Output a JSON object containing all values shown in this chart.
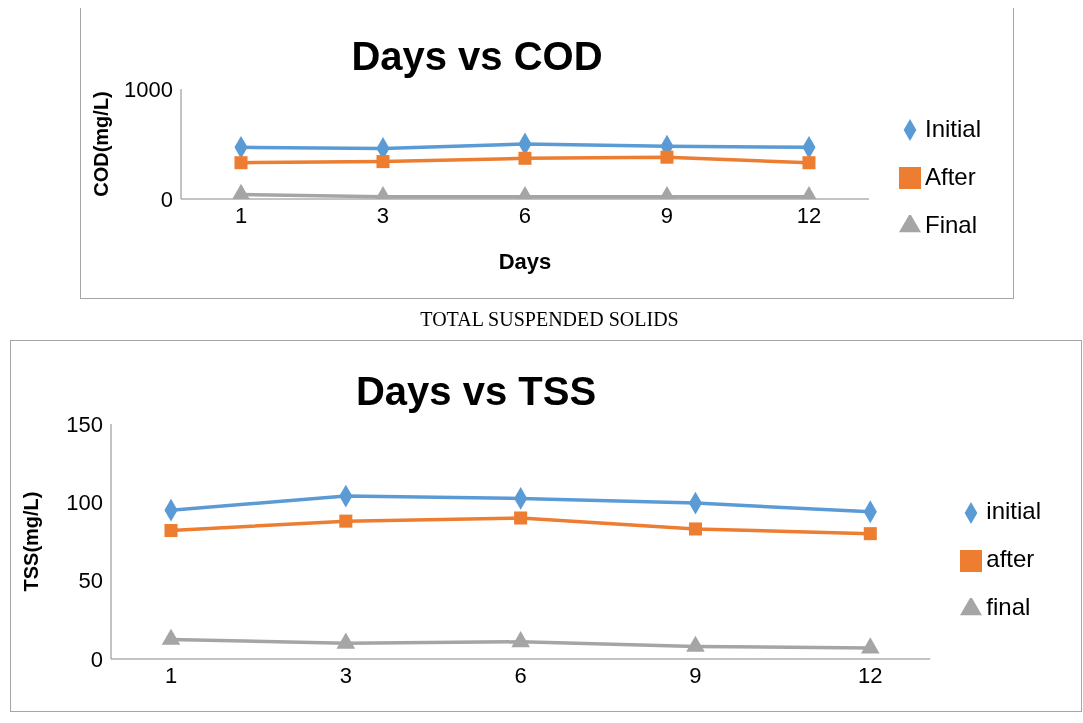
{
  "chart_data": [
    {
      "type": "line",
      "title": "Days vs COD",
      "xlabel": "Days",
      "ylabel": "COD(mg/L)",
      "categories": [
        "1",
        "3",
        "6",
        "9",
        "12"
      ],
      "ylim": [
        0,
        1000
      ],
      "yticks": [
        0,
        1000
      ],
      "grid": false,
      "legend": "right",
      "series": [
        {
          "name": "Initial",
          "color": "#5b9bd5",
          "marker": "diamond",
          "values": [
            470,
            460,
            500,
            480,
            470
          ]
        },
        {
          "name": "After",
          "color": "#ed7d31",
          "marker": "square",
          "values": [
            330,
            340,
            370,
            380,
            330
          ]
        },
        {
          "name": "Final",
          "color": "#a5a5a5",
          "marker": "triangle",
          "values": [
            40,
            20,
            20,
            20,
            20
          ]
        }
      ]
    },
    {
      "type": "line",
      "title": "Days vs TSS",
      "ylabel": "TSS(mg/L)",
      "annotations": [
        "TOTAL SUSPENDED SOLIDS"
      ],
      "categories": [
        "1",
        "3",
        "6",
        "9",
        "12"
      ],
      "ylim": [
        0,
        150
      ],
      "yticks": [
        0,
        50,
        100,
        150
      ],
      "grid": false,
      "legend": "right",
      "series": [
        {
          "name": "initial",
          "color": "#5b9bd5",
          "marker": "diamond",
          "values": [
            95,
            104,
            102.5,
            99.5,
            94
          ]
        },
        {
          "name": "after",
          "color": "#ed7d31",
          "marker": "square",
          "values": [
            82,
            88,
            90,
            83,
            80
          ]
        },
        {
          "name": "final",
          "color": "#a5a5a5",
          "marker": "triangle",
          "values": [
            12.5,
            10,
            11,
            8,
            7
          ]
        }
      ]
    }
  ]
}
